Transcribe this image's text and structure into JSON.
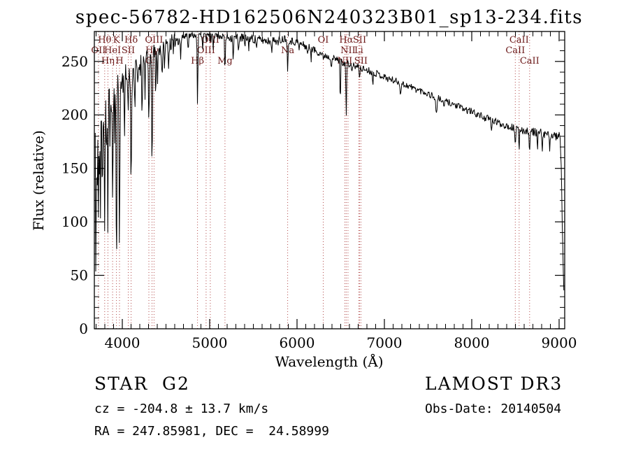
{
  "title": "spec-56782-HD162506N240323B01_sp13-234.fits",
  "footer": {
    "object_class": "STAR",
    "subclass": "G2",
    "survey": "LAMOST DR3",
    "cz": "cz = -204.8 ± 13.7 km/s",
    "obs_date": "Obs-Date: 20140504",
    "ra_dec": "RA = 247.85981, DEC =  24.58999"
  },
  "chart_data": {
    "type": "line",
    "title": "spec-56782-HD162506N240323B01_sp13-234.fits",
    "xlabel": "Wavelength (Å)",
    "ylabel": "Flux (relative)",
    "xlim": [
      3680,
      9064
    ],
    "ylim": [
      0,
      278
    ],
    "x_ticks": [
      4000,
      5000,
      6000,
      7000,
      8000,
      9000
    ],
    "y_ticks": [
      0,
      50,
      100,
      150,
      200,
      250
    ],
    "x_minor_step": 100,
    "y_minor_step": 10,
    "grid": false,
    "legend": "none",
    "line_color": "#000000",
    "marker_color": "#b24a4a",
    "label_color": "#6b1818",
    "x_start": 3690,
    "x_end": 9056,
    "x_step": 6,
    "noise_seed": 11,
    "spectral_lines": [
      {
        "label": "Hθ",
        "wl": 3798,
        "row": 0
      },
      {
        "label": "K",
        "wl": 3933,
        "row": 0
      },
      {
        "label": "Hδ",
        "wl": 4101,
        "row": 0
      },
      {
        "label": "OIII",
        "wl": 4363,
        "row": 0
      },
      {
        "label": "OIII",
        "wl": 5007,
        "row": 0
      },
      {
        "label": "OI",
        "wl": 6300,
        "row": 0
      },
      {
        "label": "Hα",
        "wl": 6563,
        "row": 0
      },
      {
        "label": "SII",
        "wl": 6716,
        "row": 0
      },
      {
        "label": "CaII",
        "wl": 8542,
        "row": 0
      },
      {
        "label": "OII",
        "wl": 3727,
        "row": 1
      },
      {
        "label": "HeI",
        "wl": 3889,
        "row": 1
      },
      {
        "label": "SII",
        "wl": 4068,
        "row": 1
      },
      {
        "label": "Hγ",
        "wl": 4340,
        "row": 1
      },
      {
        "label": "OIII",
        "wl": 4959,
        "row": 1
      },
      {
        "label": "Na",
        "wl": 5893,
        "row": 1
      },
      {
        "label": "NII",
        "wl": 6583,
        "row": 1
      },
      {
        "label": "Li",
        "wl": 6707,
        "row": 1
      },
      {
        "label": "CaII",
        "wl": 8498,
        "row": 1
      },
      {
        "label": "Hη",
        "wl": 3835,
        "row": 2
      },
      {
        "label": "H",
        "wl": 3968,
        "row": 2
      },
      {
        "label": "G",
        "wl": 4304,
        "row": 2
      },
      {
        "label": "Hβ",
        "wl": 4861,
        "row": 2
      },
      {
        "label": "Mg",
        "wl": 5175,
        "row": 2
      },
      {
        "label": "NII",
        "wl": 6548,
        "row": 2
      },
      {
        "label": "SII",
        "wl": 6731,
        "row": 2
      },
      {
        "label": "CaII",
        "wl": 8662,
        "row": 2
      }
    ],
    "continuum": [
      [
        3690,
        215
      ],
      [
        3702,
        180
      ],
      [
        3715,
        190
      ],
      [
        3730,
        192
      ],
      [
        3745,
        198
      ],
      [
        3762,
        202
      ],
      [
        3780,
        207
      ],
      [
        3800,
        211
      ],
      [
        3825,
        213
      ],
      [
        3850,
        216
      ],
      [
        3875,
        219
      ],
      [
        3900,
        222
      ],
      [
        3925,
        225
      ],
      [
        3950,
        228
      ],
      [
        3975,
        230
      ],
      [
        4000,
        232
      ],
      [
        4030,
        234
      ],
      [
        4060,
        236
      ],
      [
        4100,
        238
      ],
      [
        4150,
        243
      ],
      [
        4200,
        247
      ],
      [
        4250,
        250
      ],
      [
        4300,
        252
      ],
      [
        4350,
        256
      ],
      [
        4400,
        259
      ],
      [
        4450,
        262
      ],
      [
        4500,
        265
      ],
      [
        4550,
        267
      ],
      [
        4600,
        270
      ],
      [
        4650,
        272
      ],
      [
        4700,
        274
      ],
      [
        4750,
        276
      ],
      [
        4800,
        277
      ],
      [
        4860,
        277
      ],
      [
        4920,
        276
      ],
      [
        4980,
        277
      ],
      [
        5050,
        276
      ],
      [
        5120,
        275
      ],
      [
        5200,
        273
      ],
      [
        5300,
        272
      ],
      [
        5400,
        272
      ],
      [
        5500,
        271
      ],
      [
        5600,
        270
      ],
      [
        5700,
        269
      ],
      [
        5800,
        270
      ],
      [
        5870,
        272
      ],
      [
        5940,
        269
      ],
      [
        6000,
        268
      ],
      [
        6080,
        265
      ],
      [
        6160,
        262
      ],
      [
        6240,
        259
      ],
      [
        6320,
        256
      ],
      [
        6400,
        253
      ],
      [
        6480,
        251
      ],
      [
        6560,
        248
      ],
      [
        6640,
        246
      ],
      [
        6720,
        244
      ],
      [
        6800,
        242
      ],
      [
        6880,
        240
      ],
      [
        6960,
        237
      ],
      [
        7040,
        234
      ],
      [
        7120,
        232
      ],
      [
        7200,
        229
      ],
      [
        7280,
        227
      ],
      [
        7360,
        224
      ],
      [
        7440,
        222
      ],
      [
        7520,
        219
      ],
      [
        7600,
        216
      ],
      [
        7680,
        213
      ],
      [
        7760,
        211
      ],
      [
        7840,
        208
      ],
      [
        7920,
        205
      ],
      [
        8000,
        203
      ],
      [
        8080,
        200
      ],
      [
        8160,
        197
      ],
      [
        8240,
        195
      ],
      [
        8320,
        192
      ],
      [
        8400,
        190
      ],
      [
        8480,
        188
      ],
      [
        8560,
        186
      ],
      [
        8640,
        185
      ],
      [
        8720,
        184
      ],
      [
        8800,
        183
      ],
      [
        8880,
        181
      ],
      [
        8960,
        180
      ],
      [
        9000,
        180
      ],
      [
        9012,
        176
      ],
      [
        9024,
        150
      ],
      [
        9036,
        100
      ],
      [
        9046,
        55
      ],
      [
        9056,
        32
      ]
    ],
    "absorption_lines": [
      [
        3697,
        150,
        4
      ],
      [
        3712,
        85,
        3.5
      ],
      [
        3727,
        70,
        3.5
      ],
      [
        3738,
        55,
        3
      ],
      [
        3750,
        95,
        3.5
      ],
      [
        3771,
        100,
        3.5
      ],
      [
        3798,
        115,
        4
      ],
      [
        3820,
        55,
        3
      ],
      [
        3835,
        125,
        4
      ],
      [
        3860,
        50,
        3
      ],
      [
        3889,
        118,
        4
      ],
      [
        3912,
        45,
        3
      ],
      [
        3933,
        175,
        4.5
      ],
      [
        3968,
        150,
        4.5
      ],
      [
        4026,
        52,
        3.5
      ],
      [
        4068,
        38,
        3
      ],
      [
        4101,
        112,
        4.5
      ],
      [
        4144,
        38,
        3.5
      ],
      [
        4178,
        30,
        3
      ],
      [
        4226,
        50,
        3.5
      ],
      [
        4260,
        28,
        3
      ],
      [
        4304,
        62,
        4.5
      ],
      [
        4340,
        108,
        4.5
      ],
      [
        4383,
        48,
        3.5
      ],
      [
        4405,
        28,
        3
      ],
      [
        4455,
        30,
        3.5
      ],
      [
        4481,
        26,
        3
      ],
      [
        4531,
        24,
        3.5
      ],
      [
        4585,
        18,
        3
      ],
      [
        4668,
        24,
        3.5
      ],
      [
        4755,
        14,
        3
      ],
      [
        4861,
        70,
        4.5
      ],
      [
        4920,
        16,
        3
      ],
      [
        4958,
        10,
        3
      ],
      [
        5015,
        14,
        3
      ],
      [
        5041,
        12,
        3
      ],
      [
        5175,
        32,
        4.5
      ],
      [
        5270,
        20,
        4
      ],
      [
        5329,
        14,
        3.5
      ],
      [
        5404,
        12,
        3.5
      ],
      [
        5446,
        10,
        3
      ],
      [
        5535,
        10,
        3
      ],
      [
        5711,
        8,
        3
      ],
      [
        5782,
        8,
        3
      ],
      [
        5893,
        34,
        4
      ],
      [
        6025,
        8,
        3
      ],
      [
        6122,
        10,
        3.5
      ],
      [
        6162,
        9,
        3
      ],
      [
        6300,
        8,
        3
      ],
      [
        6393,
        8,
        3
      ],
      [
        6495,
        40,
        3.5
      ],
      [
        6563,
        50,
        4
      ],
      [
        6625,
        8,
        3
      ],
      [
        6717,
        12,
        3
      ],
      [
        6867,
        12,
        4.5
      ],
      [
        7186,
        10,
        5
      ],
      [
        7594,
        14,
        8
      ],
      [
        7680,
        8,
        4
      ],
      [
        8227,
        12,
        4.5
      ],
      [
        8498,
        20,
        3.5
      ],
      [
        8542,
        26,
        3.5
      ],
      [
        8662,
        24,
        3.5
      ],
      [
        8752,
        20,
        3
      ],
      [
        8806,
        26,
        3
      ],
      [
        8890,
        14,
        3
      ]
    ],
    "noise": [
      [
        3690,
        26
      ],
      [
        3760,
        22
      ],
      [
        3850,
        18
      ],
      [
        3950,
        16
      ],
      [
        4050,
        13
      ],
      [
        4200,
        11
      ],
      [
        4400,
        9
      ],
      [
        4600,
        7
      ],
      [
        4800,
        6
      ],
      [
        5000,
        5
      ],
      [
        5300,
        4.5
      ],
      [
        5700,
        4
      ],
      [
        6100,
        3.8
      ],
      [
        6600,
        3.5
      ],
      [
        7200,
        3.3
      ],
      [
        7800,
        3.3
      ],
      [
        8400,
        3.6
      ],
      [
        8800,
        4
      ],
      [
        9056,
        4
      ]
    ]
  }
}
